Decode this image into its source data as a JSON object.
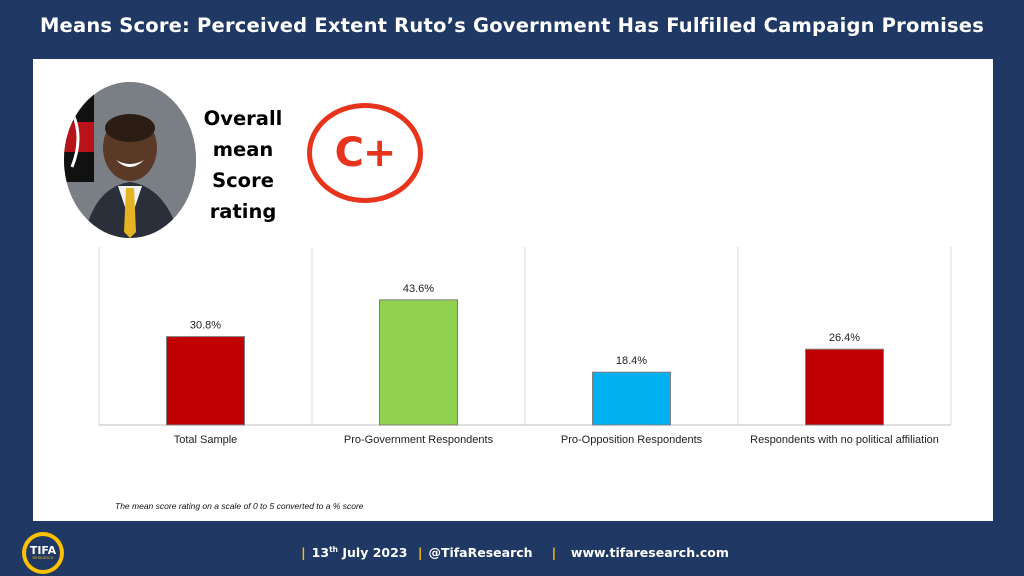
{
  "title": "Means Score: Perceived Extent Ruto’s  Government Has Fulfilled Campaign Promises",
  "overall": {
    "label_lines": [
      "Overall",
      "mean",
      "Score",
      "rating"
    ],
    "grade": "C+",
    "grade_color": "#e8341c"
  },
  "chart_data": {
    "type": "bar",
    "categories": [
      "Total Sample",
      "Pro-Government Respondents",
      "Pro-Opposition Respondents",
      "Respondents with no political affiliation"
    ],
    "values": [
      30.8,
      43.6,
      18.4,
      26.4
    ],
    "value_labels": [
      "30.8%",
      "43.6%",
      "18.4%",
      "26.4%"
    ],
    "colors": [
      "#c00000",
      "#92d050",
      "#00b0f0",
      "#c00000"
    ],
    "ylim": [
      0,
      62
    ],
    "grid": false,
    "title": "",
    "xlabel": "",
    "ylabel": ""
  },
  "footnote": "The mean score rating  on a scale of 0 to 5 converted  to a % score",
  "footer": {
    "date_day": "13",
    "date_suffix": "th",
    "date_rest": " July 2023",
    "handle": "@TifaResearch",
    "website": "www.tifaresearch.com"
  },
  "logo": {
    "text": "TIFA",
    "sub": "RESEARCH"
  },
  "colors": {
    "background": "#1f3864",
    "accent": "#ffc000",
    "panel": "#ffffff"
  }
}
